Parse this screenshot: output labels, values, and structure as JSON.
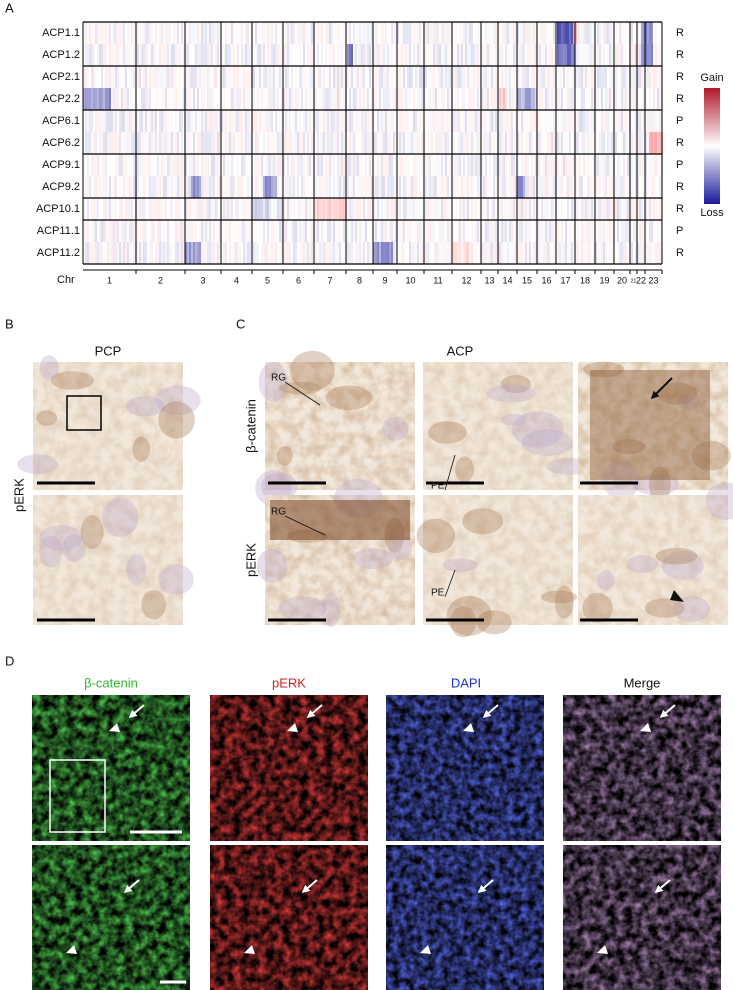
{
  "panel_a": {
    "label": "A",
    "samples": [
      {
        "name": "ACP1.1",
        "type": "R"
      },
      {
        "name": "ACP1.2",
        "type": "R"
      },
      {
        "name": "ACP2.1",
        "type": "R"
      },
      {
        "name": "ACP2.2",
        "type": "R"
      },
      {
        "name": "ACP6.1",
        "type": "P"
      },
      {
        "name": "ACP6.2",
        "type": "R"
      },
      {
        "name": "ACP9.1",
        "type": "P"
      },
      {
        "name": "ACP9.2",
        "type": "R"
      },
      {
        "name": "ACP10.1",
        "type": "R"
      },
      {
        "name": "ACP11.1",
        "type": "P"
      },
      {
        "name": "ACP11.2",
        "type": "R"
      }
    ],
    "axis_label": "Chr",
    "chromosomes": [
      "1",
      "2",
      "3",
      "4",
      "5",
      "6",
      "7",
      "8",
      "9",
      "10",
      "11",
      "12",
      "13",
      "14",
      "15",
      "16",
      "17",
      "18",
      "19",
      "20",
      "21",
      "22",
      "23"
    ],
    "legend": {
      "high": "Gain",
      "low": "Loss"
    }
  },
  "panel_b": {
    "label": "B",
    "title": "PCP",
    "row_label": "pERK"
  },
  "panel_c": {
    "label": "C",
    "title": "ACP",
    "row_labels": [
      "β-catenin",
      "pERK"
    ],
    "annotations": {
      "top": [
        "RG",
        "PE"
      ],
      "bottom": [
        "RG",
        "PE"
      ]
    }
  },
  "panel_d": {
    "label": "D",
    "columns": [
      "β-catenin",
      "pERK",
      "DAPI",
      "Merge"
    ]
  }
}
